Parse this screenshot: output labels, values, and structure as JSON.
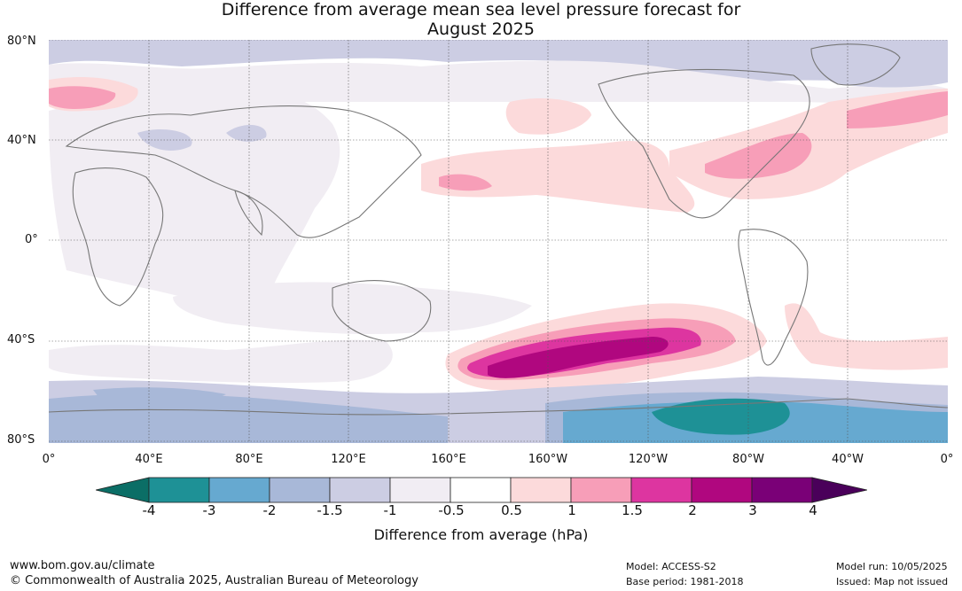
{
  "title_line1": "Difference from average mean sea level pressure forecast for",
  "title_line2": "August 2025",
  "lat_labels": [
    "80°N",
    "40°N",
    "0°",
    "40°S",
    "80°S"
  ],
  "lon_labels": [
    "0°",
    "40°E",
    "80°E",
    "120°E",
    "160°E",
    "160°W",
    "120°W",
    "80°W",
    "40°W",
    "0°"
  ],
  "colorbar": {
    "title": "Difference from average (hPa)",
    "ticks": [
      "-4",
      "-3",
      "-2",
      "-1.5",
      "-1",
      "-0.5",
      "0.5",
      "1",
      "1.5",
      "2",
      "3",
      "4"
    ],
    "colors": [
      "#0b6e66",
      "#1e9196",
      "#66a9d0",
      "#a8b8d8",
      "#cccde3",
      "#f1edf3",
      "#ffffff",
      "#fcdadb",
      "#f79eb8",
      "#dd35a0",
      "#b0077f",
      "#7a0077",
      "#4a005a"
    ]
  },
  "footer": {
    "url": "www.bom.gov.au/climate",
    "copyright": "© Commonwealth of Australia 2025, Australian Bureau of Meteorology",
    "model": "Model: ACCESS-S2",
    "base_period": "Base period: 1981-2018",
    "model_run": "Model run: 10/05/2025",
    "issued": "Issued: Map not issued"
  }
}
